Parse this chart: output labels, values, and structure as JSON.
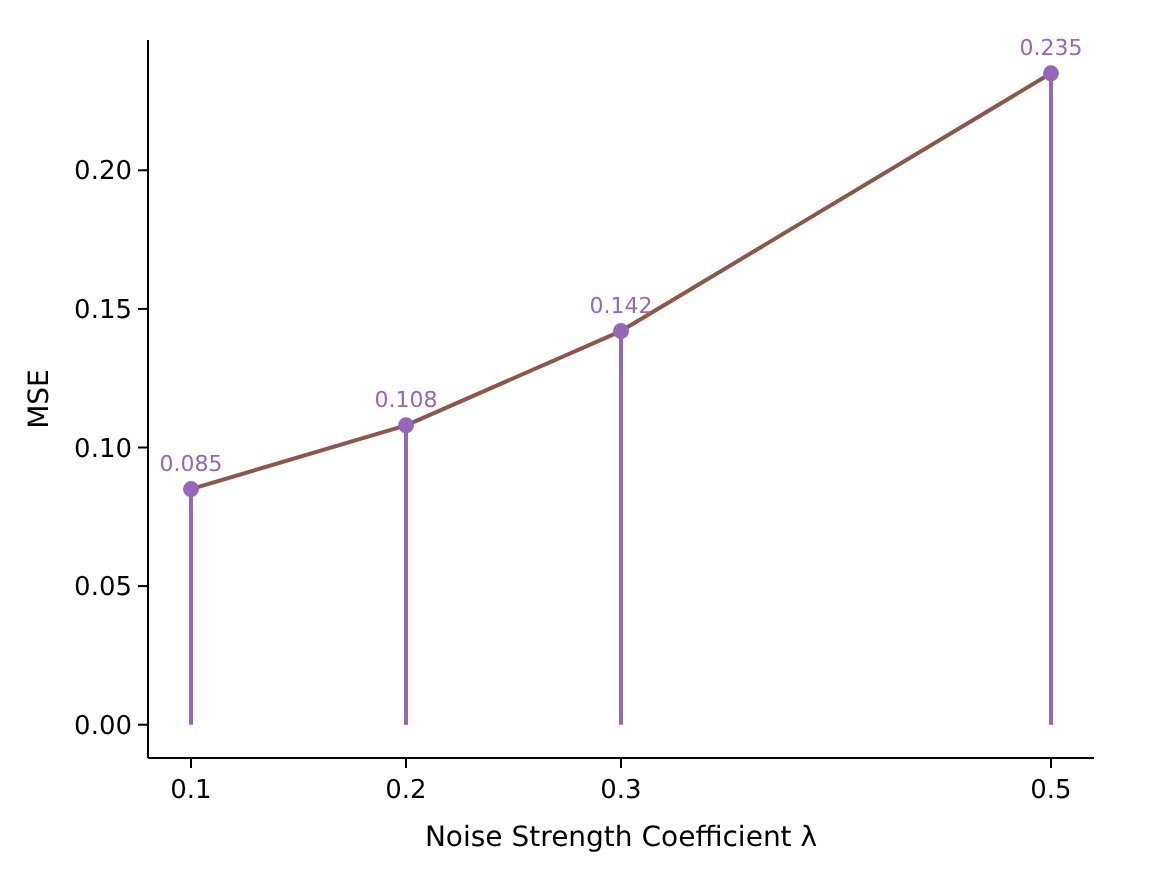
{
  "chart_data": {
    "type": "lollipop",
    "xlabel": "Noise Strength Coefficient λ",
    "ylabel": "MSE",
    "x": [
      0.1,
      0.2,
      0.3,
      0.5
    ],
    "xlim": [
      0.08,
      0.52
    ],
    "xticks": [
      0.1,
      0.2,
      0.3,
      0.5
    ],
    "ylim": [
      -0.012,
      0.247
    ],
    "yticks": [
      {
        "value": 0,
        "label": "0.00"
      },
      {
        "value": 0.05,
        "label": "0.05"
      },
      {
        "value": 0.1,
        "label": "0.10"
      },
      {
        "value": 0.15,
        "label": "0.15"
      },
      {
        "value": 0.2,
        "label": "0.20"
      }
    ],
    "grid": false,
    "marker": "circle",
    "series": [
      {
        "type": "line",
        "marker": "none",
        "color": "#8c564b",
        "values": [
          0.085,
          0.108,
          0.142,
          0.235
        ]
      },
      {
        "color": "#9467bd",
        "values": [
          0.085,
          0.108,
          0.142,
          0.235
        ],
        "value_labels": [
          "0.085",
          "0.108",
          "0.142",
          "0.235"
        ]
      }
    ]
  }
}
